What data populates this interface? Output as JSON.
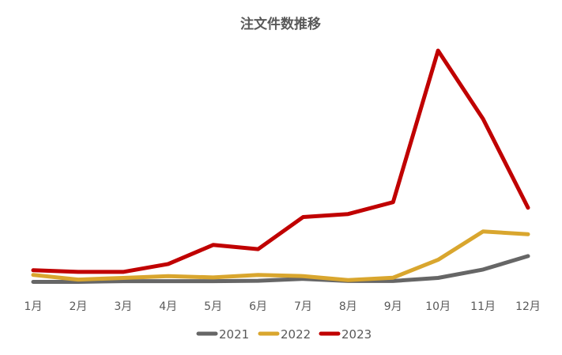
{
  "chart_data": {
    "type": "line",
    "title": "注文件数推移",
    "xlabel": "",
    "ylabel": "",
    "categories": [
      "1月",
      "2月",
      "3月",
      "4月",
      "5月",
      "6月",
      "7月",
      "8月",
      "9月",
      "10月",
      "11月",
      "12月"
    ],
    "ylim": [
      0,
      100
    ],
    "grid": false,
    "legend": "bottom",
    "series": [
      {
        "name": "2021",
        "color": "#666666",
        "values": [
          0.5,
          0.5,
          0.8,
          0.8,
          0.8,
          1.0,
          1.8,
          0.9,
          0.9,
          2.2,
          5.8,
          11.6
        ]
      },
      {
        "name": "2022",
        "color": "#D9A62E",
        "values": [
          3.5,
          1.5,
          2.2,
          3.0,
          2.4,
          3.5,
          3.0,
          1.3,
          2.3,
          10.0,
          22.2,
          21.0
        ]
      },
      {
        "name": "2023",
        "color": "#C00000",
        "values": [
          5.5,
          4.8,
          4.8,
          8.2,
          16.4,
          14.6,
          28.4,
          29.7,
          34.8,
          100,
          70.6,
          32.4
        ]
      }
    ]
  }
}
